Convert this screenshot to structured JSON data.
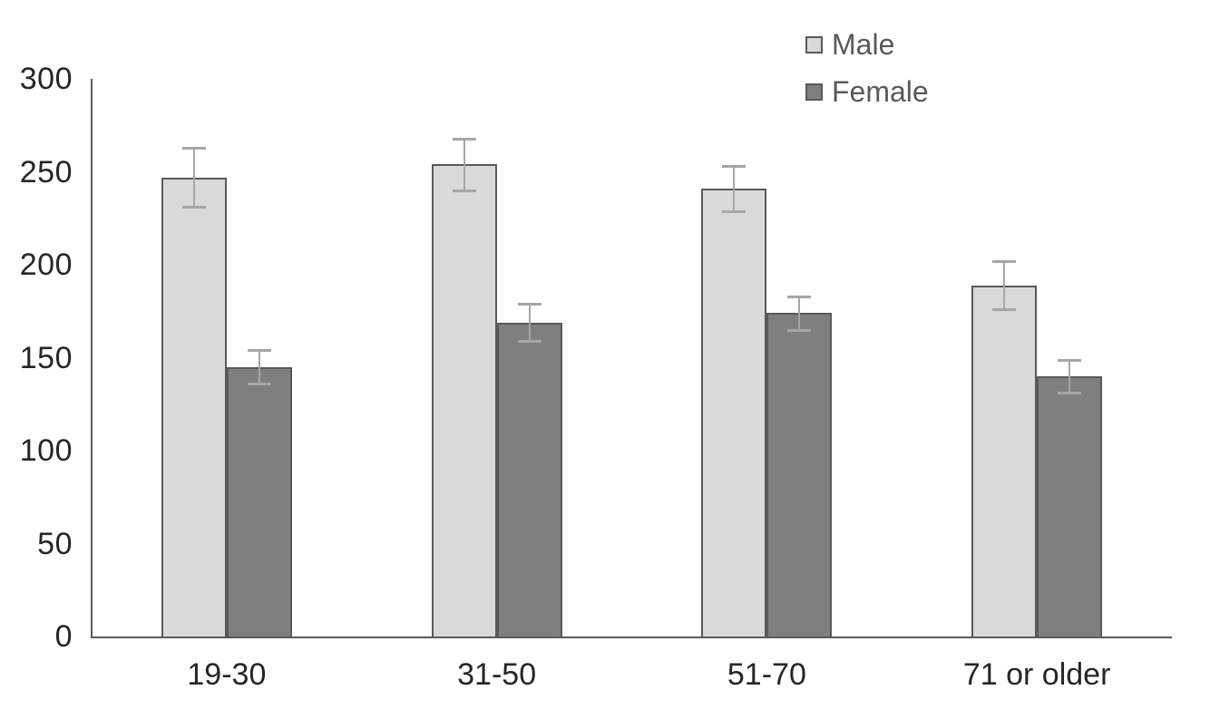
{
  "chart_data": {
    "type": "bar",
    "title": "",
    "xlabel": "",
    "ylabel": "",
    "categories": [
      "19-30",
      "31-50",
      "51-70",
      "71 or older"
    ],
    "series": [
      {
        "name": "Male",
        "values": [
          247,
          254,
          241,
          189
        ],
        "errors": [
          16,
          14,
          12,
          13
        ],
        "fill": "#d9d9d9",
        "border": "#595959"
      },
      {
        "name": "Female",
        "values": [
          145,
          169,
          174,
          140
        ],
        "errors": [
          9,
          10,
          9,
          9
        ],
        "fill": "#7f7f7f",
        "border": "#595959"
      }
    ],
    "ylim": [
      0,
      300
    ],
    "yticks": [
      0,
      50,
      100,
      150,
      200,
      250,
      300
    ],
    "grid": false,
    "legend_position": "top-right",
    "colors": {
      "error_bar": "#a6a6a6",
      "axis": "#595959",
      "tick_label": "#262626",
      "legend_text": "#595959",
      "background": "#ffffff"
    }
  }
}
